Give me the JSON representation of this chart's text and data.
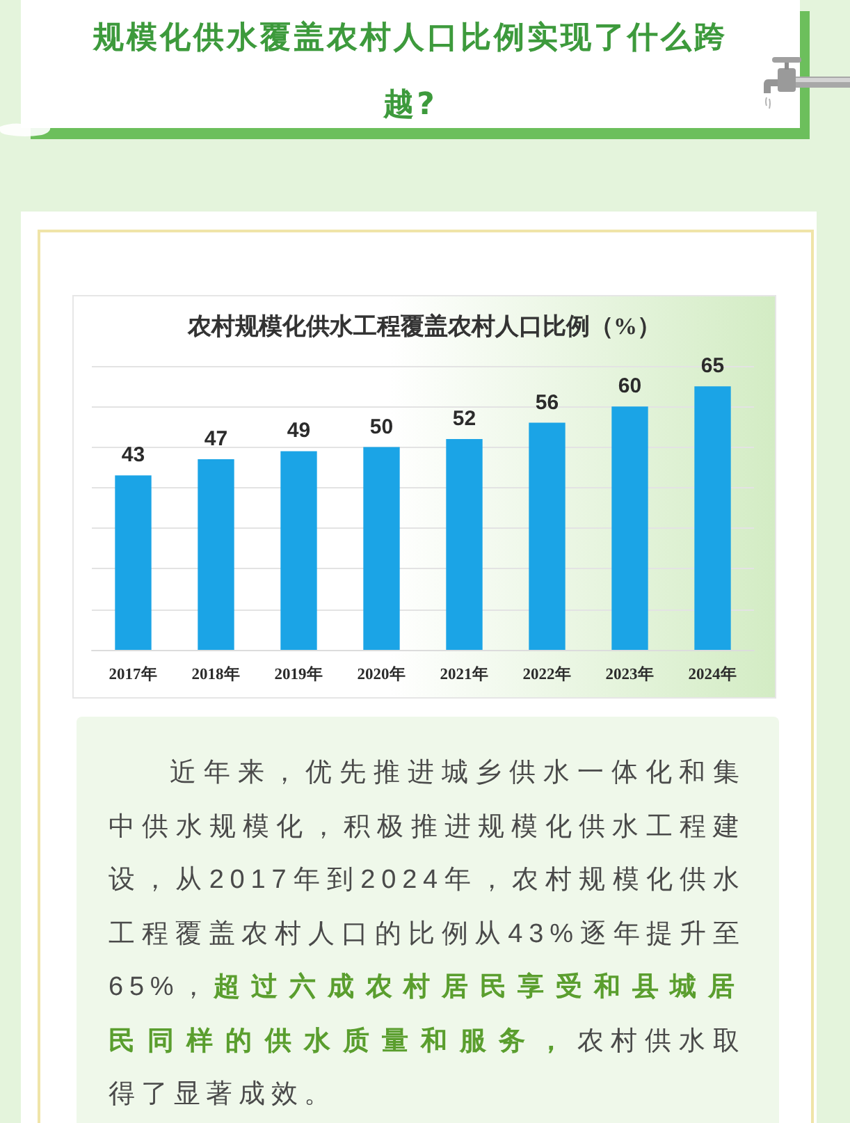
{
  "chart_data": {
    "type": "bar",
    "title": "规模化供水覆盖农村人口比例实现了什么跨越?",
    "subtitle": "农村规模化供水工程覆盖农村人口比例（%）",
    "categories": [
      "2017年",
      "2018年",
      "2019年",
      "2020年",
      "2021年",
      "2022年",
      "2023年",
      "2024年"
    ],
    "values": [
      43,
      47,
      49,
      50,
      52,
      56,
      60,
      65
    ],
    "color": "#1ba4e6",
    "data_labels": true,
    "ylim": [
      0,
      70
    ],
    "yticks": [
      {
        "value": 0,
        "label": null
      },
      {
        "value": 10,
        "label": null
      },
      {
        "value": 20,
        "label": null
      },
      {
        "value": 30,
        "label": null
      },
      {
        "value": 40,
        "label": null
      },
      {
        "value": 50,
        "label": null
      },
      {
        "value": 60,
        "label": null
      },
      {
        "value": 70,
        "label": null
      }
    ],
    "tick_labels": "x",
    "grid": "y",
    "annotations": [
      "近年来，优先推进城乡供水一体化和集中供水规模化，积极推进规模化供水工程建设，从2017年到2024年，农村规模化供水工程覆盖农村人口的比例从43%逐年提升至65%，",
      "超过六成农村居民享受和县城居民同样的供水质量和服务，",
      "农村供水取得了显著成效。"
    ]
  }
}
